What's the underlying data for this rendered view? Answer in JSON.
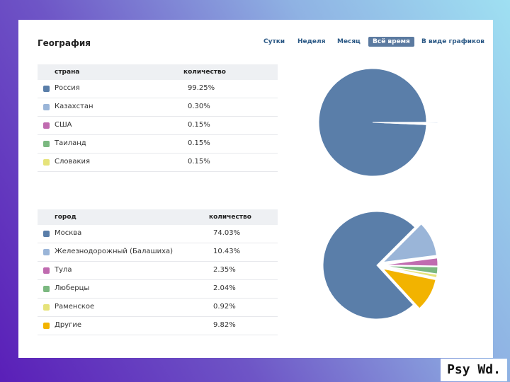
{
  "header": {
    "title": "География",
    "tabs": [
      "Сутки",
      "Неделя",
      "Месяц",
      "Всё время",
      "В виде графиков"
    ],
    "active_tab": "Всё время"
  },
  "chart_data": [
    {
      "type": "pie",
      "columns": [
        "страна",
        "количество"
      ],
      "categories": [
        "Россия",
        "Казахстан",
        "США",
        "Таиланд",
        "Словакия"
      ],
      "values": [
        99.25,
        0.3,
        0.15,
        0.15,
        0.15
      ],
      "value_labels": [
        "99.25%",
        "0.30%",
        "0.15%",
        "0.15%",
        "0.15%"
      ],
      "colors": [
        "#5a7ea9",
        "#9ab5d8",
        "#c06bb0",
        "#7bb880",
        "#e6e37a"
      ]
    },
    {
      "type": "pie",
      "columns": [
        "город",
        "количество"
      ],
      "categories": [
        "Москва",
        "Железнодорожный (Балашиха)",
        "Тула",
        "Люберцы",
        "Раменское",
        "Другие"
      ],
      "values": [
        74.03,
        10.43,
        2.35,
        2.04,
        0.92,
        9.82
      ],
      "value_labels": [
        "74.03%",
        "10.43%",
        "2.35%",
        "2.04%",
        "0.92%",
        "9.82%"
      ],
      "colors": [
        "#5a7ea9",
        "#9ab5d8",
        "#c06bb0",
        "#7bb880",
        "#e6e37a",
        "#f2b300"
      ]
    }
  ],
  "brand": {
    "label": "Psy Wd."
  }
}
